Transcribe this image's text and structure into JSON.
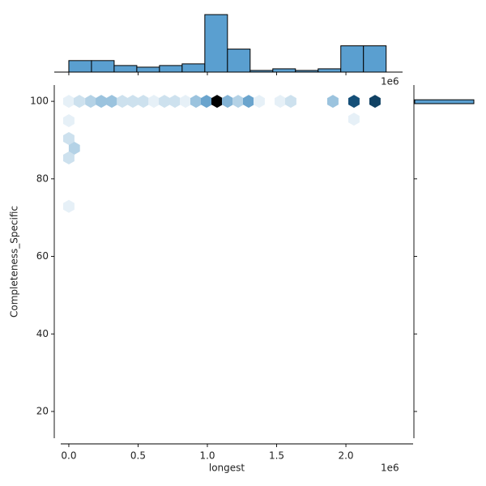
{
  "chart_data": [
    {
      "type": "hexbin",
      "x_label": "longest",
      "y_label": "Completeness_Specific",
      "x_offset_text": "1e6",
      "x": [
        0.0,
        0.076,
        0.158,
        0.234,
        0.31,
        0.386,
        0.462,
        0.538,
        0.614,
        0.69,
        0.766,
        0.842,
        0.918,
        0.994,
        1.07,
        1.146,
        1.222,
        1.298,
        1.374,
        1.526,
        1.602,
        1.906,
        2.058,
        2.21,
        0.0,
        0.04,
        0.0,
        0.0,
        2.058,
        0.0
      ],
      "y": [
        100,
        100,
        100,
        100,
        100,
        100,
        100,
        100,
        100,
        100,
        100,
        100,
        100,
        100,
        100,
        100,
        100,
        100,
        100,
        100,
        100,
        100,
        100,
        100,
        90.4,
        87.9,
        85.4,
        95,
        95.4,
        72.9
      ],
      "counts": [
        1,
        2,
        3,
        4,
        4,
        2,
        2,
        2,
        1,
        2,
        2,
        1,
        4,
        6,
        18,
        5,
        3,
        6,
        1,
        1,
        2,
        4,
        12,
        13,
        2,
        3,
        2,
        1,
        1,
        1
      ],
      "colors": [
        "#ffffff",
        "#1f77b4",
        "#000000"
      ],
      "xlim": [
        -0.105,
        2.485
      ],
      "ylim": [
        13.1,
        104.2
      ],
      "xticks": [
        {
          "value": 0,
          "label": "0.0"
        },
        {
          "value": 0.5,
          "label": "0.5"
        },
        {
          "value": 1,
          "label": "1.0"
        },
        {
          "value": 1.5,
          "label": "1.5"
        },
        {
          "value": 2,
          "label": "2.0"
        }
      ],
      "yticks": [
        20,
        40,
        60,
        80,
        100
      ]
    },
    {
      "type": "histogram",
      "orientation": "vertical",
      "color": "#5a9fd0",
      "bins": [
        0,
        0.1636,
        0.3272,
        0.4908,
        0.6544,
        0.818,
        0.9816,
        1.1452,
        1.3088,
        1.4724,
        1.636,
        1.7996,
        1.9632,
        2.1268,
        2.2904
      ],
      "counts": [
        7,
        7,
        4,
        3,
        4,
        5,
        35,
        14,
        1,
        2,
        1,
        2,
        16,
        16
      ],
      "ylim": [
        0,
        36
      ]
    },
    {
      "type": "histogram",
      "orientation": "horizontal",
      "color": "#5a9fd0",
      "bins": [
        99.4,
        100.4
      ],
      "counts": [
        131
      ],
      "xlim": [
        0,
        140
      ]
    }
  ]
}
